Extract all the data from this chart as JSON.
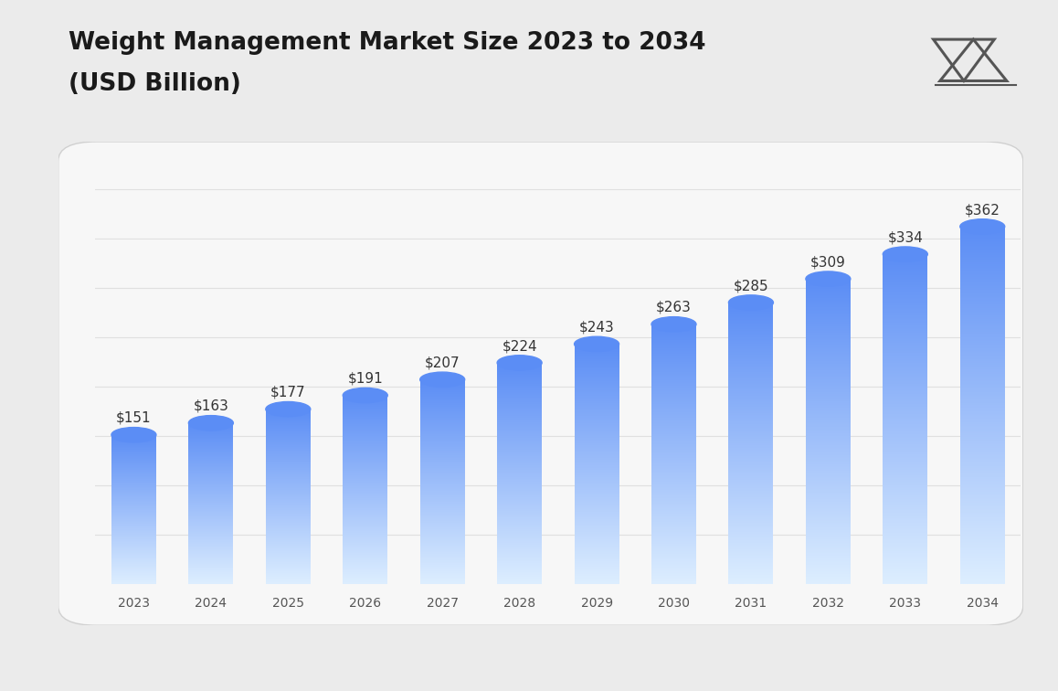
{
  "title_line1": "Weight Management Market Size 2023 to 2034",
  "title_line2": "(USD Billion)",
  "years": [
    2023,
    2024,
    2025,
    2026,
    2027,
    2028,
    2029,
    2030,
    2031,
    2032,
    2033,
    2034
  ],
  "values": [
    151,
    163,
    177,
    191,
    207,
    224,
    243,
    263,
    285,
    309,
    334,
    362
  ],
  "bar_top_color": "#5b8df5",
  "bar_bottom_color": "#ddeeff",
  "background_outer": "#ebebeb",
  "background_panel": "#f7f7f7",
  "label_color": "#333333",
  "tick_color": "#555555",
  "grid_color": "#e0e0e0",
  "title_color": "#1a1a1a",
  "ylim": [
    0,
    420
  ],
  "bar_width": 0.58,
  "label_fontsize": 11,
  "tick_fontsize": 10,
  "title_fontsize1": 19,
  "title_fontsize2": 19
}
